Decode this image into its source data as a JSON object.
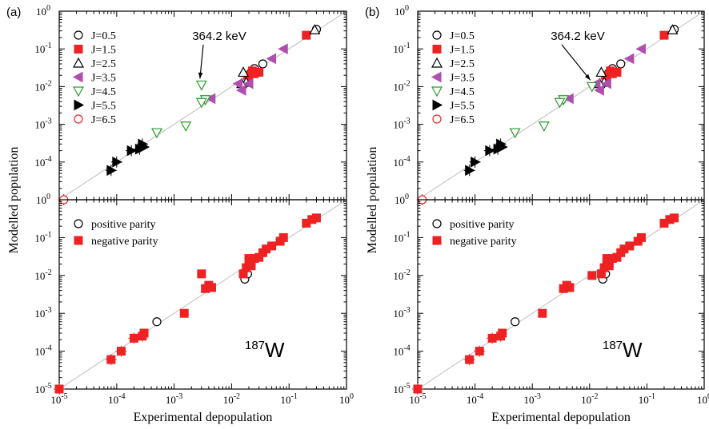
{
  "chart_data": [
    {
      "panel_label": "(a)",
      "type": "scatter",
      "xlabel": "Experimental depopulation",
      "ylabel": "Modelled population",
      "xscale": "log",
      "yscale": "log",
      "xlim": [
        1e-05,
        1
      ],
      "ylim": [
        1e-05,
        1
      ],
      "x_tick_labels": [
        "10^-5",
        "10^-4",
        "10^-3",
        "10^-2",
        "10^-1",
        "10^0"
      ],
      "y_tick_labels": [
        "10^-5",
        "10^-4",
        "10^-3",
        "10^-2",
        "10^-1",
        "10^0"
      ],
      "annotation": {
        "text": "364.2 keV",
        "points_to": [
          0.003,
          0.011
        ]
      },
      "nucleus": {
        "mass": "187",
        "symbol": "W"
      },
      "subplots": [
        {
          "position": "top",
          "legend_position": "top-left",
          "series": [
            {
              "name": "J=0.5",
              "marker": "open-circle",
              "color": "#000000",
              "points": [
                [
                  0.035,
                  0.04
                ],
                [
                  0.3,
                  0.33
                ],
                [
                  0.025,
                  0.03
                ],
                [
                  0.022,
                  0.024
                ]
              ]
            },
            {
              "name": "J=1.5",
              "marker": "filled-square",
              "color": "#ee2222",
              "points": [
                [
                  0.2,
                  0.23
                ],
                [
                  0.03,
                  0.024
                ],
                [
                  0.025,
                  0.022
                ],
                [
                  0.02,
                  0.018
                ],
                [
                  0.023,
                  0.026
                ],
                [
                  0.019,
                  0.02
                ]
              ]
            },
            {
              "name": "J=2.5",
              "marker": "open-triangle-up",
              "color": "#000000",
              "points": [
                [
                  0.28,
                  0.32
                ],
                [
                  0.016,
                  0.024
                ],
                [
                  0.018,
                  0.013
                ],
                [
                  0.015,
                  0.012
                ]
              ]
            },
            {
              "name": "J=3.5",
              "marker": "filled-triangle-left",
              "color": "#b04fb0",
              "points": [
                [
                  0.08,
                  0.1
                ],
                [
                  0.05,
                  0.055
                ],
                [
                  0.013,
                  0.012
                ],
                [
                  0.015,
                  0.008
                ],
                [
                  0.02,
                  0.012
                ],
                [
                  0.0044,
                  0.0048
                ]
              ]
            },
            {
              "name": "J=4.5",
              "marker": "open-triangle-down",
              "color": "#2a9a2a",
              "points": [
                [
                  0.003,
                  0.011
                ],
                [
                  0.0035,
                  0.0045
                ],
                [
                  0.003,
                  0.0038
                ],
                [
                  0.0016,
                  0.0009
                ],
                [
                  0.0005,
                  0.0006
                ]
              ]
            },
            {
              "name": "J=5.5",
              "marker": "filled-triangle-right",
              "color": "#000000",
              "points": [
                [
                  0.00028,
                  0.0003
                ],
                [
                  0.0003,
                  0.00025
                ],
                [
                  0.00025,
                  0.00022
                ],
                [
                  0.00018,
                  0.0002
                ],
                [
                  0.0001,
                  0.0001
                ],
                [
                  8e-05,
                  6e-05
                ]
              ]
            },
            {
              "name": "J=6.5",
              "marker": "open-circle",
              "color": "#ee2222",
              "points": [
                [
                  1.2e-05,
                  1e-05
                ]
              ]
            }
          ]
        },
        {
          "position": "bottom",
          "legend_position": "top-left",
          "series": [
            {
              "name": "positive parity",
              "marker": "open-circle",
              "color": "#000000",
              "points": [
                [
                  0.017,
                  0.008
                ],
                [
                  0.019,
                  0.011
                ],
                [
                  0.0005,
                  0.0006
                ]
              ]
            },
            {
              "name": "negative parity",
              "marker": "filled-square",
              "color": "#ee2222",
              "points": [
                [
                  0.3,
                  0.33
                ],
                [
                  0.25,
                  0.3
                ],
                [
                  0.2,
                  0.24
                ],
                [
                  0.08,
                  0.1
                ],
                [
                  0.07,
                  0.08
                ],
                [
                  0.05,
                  0.06
                ],
                [
                  0.04,
                  0.05
                ],
                [
                  0.035,
                  0.04
                ],
                [
                  0.03,
                  0.03
                ],
                [
                  0.025,
                  0.028
                ],
                [
                  0.02,
                  0.022
                ],
                [
                  0.018,
                  0.016
                ],
                [
                  0.022,
                  0.018
                ],
                [
                  0.02,
                  0.028
                ],
                [
                  0.016,
                  0.011
                ],
                [
                  0.003,
                  0.011
                ],
                [
                  0.004,
                  0.0055
                ],
                [
                  0.0035,
                  0.0045
                ],
                [
                  0.0045,
                  0.0048
                ],
                [
                  0.0015,
                  0.001
                ],
                [
                  0.0003,
                  0.0003
                ],
                [
                  0.00028,
                  0.00025
                ],
                [
                  0.0002,
                  0.00022
                ],
                [
                  0.00012,
                  0.0001
                ],
                [
                  8e-05,
                  6e-05
                ],
                [
                  1e-05,
                  1e-05
                ]
              ]
            }
          ]
        }
      ]
    },
    {
      "panel_label": "(b)",
      "type": "scatter",
      "xlabel": "Experimental depopulation",
      "ylabel": "Modelled population",
      "xscale": "log",
      "yscale": "log",
      "xlim": [
        1e-05,
        1
      ],
      "ylim": [
        1e-05,
        1
      ],
      "x_tick_labels": [
        "10^-5",
        "10^-4",
        "10^-3",
        "10^-2",
        "10^-1",
        "10^0"
      ],
      "y_tick_labels": [
        "10^-5",
        "10^-4",
        "10^-3",
        "10^-2",
        "10^-1",
        "10^0"
      ],
      "annotation": {
        "text": "364.2 keV",
        "points_to": [
          0.011,
          0.01
        ]
      },
      "nucleus": {
        "mass": "187",
        "symbol": "W"
      },
      "subplots": [
        {
          "position": "top",
          "legend_position": "top-left",
          "series": [
            {
              "name": "J=0.5",
              "marker": "open-circle",
              "color": "#000000",
              "points": [
                [
                  0.035,
                  0.04
                ],
                [
                  0.3,
                  0.33
                ],
                [
                  0.025,
                  0.03
                ],
                [
                  0.022,
                  0.024
                ]
              ]
            },
            {
              "name": "J=1.5",
              "marker": "filled-square",
              "color": "#ee2222",
              "points": [
                [
                  0.2,
                  0.23
                ],
                [
                  0.03,
                  0.024
                ],
                [
                  0.025,
                  0.022
                ],
                [
                  0.02,
                  0.018
                ],
                [
                  0.023,
                  0.026
                ],
                [
                  0.019,
                  0.02
                ]
              ]
            },
            {
              "name": "J=2.5",
              "marker": "open-triangle-up",
              "color": "#000000",
              "points": [
                [
                  0.28,
                  0.32
                ],
                [
                  0.016,
                  0.024
                ],
                [
                  0.018,
                  0.013
                ],
                [
                  0.015,
                  0.012
                ]
              ]
            },
            {
              "name": "J=3.5",
              "marker": "filled-triangle-left",
              "color": "#b04fb0",
              "points": [
                [
                  0.08,
                  0.1
                ],
                [
                  0.05,
                  0.055
                ],
                [
                  0.013,
                  0.012
                ],
                [
                  0.015,
                  0.008
                ],
                [
                  0.02,
                  0.012
                ],
                [
                  0.0044,
                  0.0048
                ]
              ]
            },
            {
              "name": "J=4.5",
              "marker": "open-triangle-down",
              "color": "#2a9a2a",
              "points": [
                [
                  0.011,
                  0.01
                ],
                [
                  0.0035,
                  0.0045
                ],
                [
                  0.003,
                  0.0038
                ],
                [
                  0.0016,
                  0.0009
                ],
                [
                  0.0005,
                  0.0006
                ]
              ]
            },
            {
              "name": "J=5.5",
              "marker": "filled-triangle-right",
              "color": "#000000",
              "points": [
                [
                  0.00028,
                  0.0003
                ],
                [
                  0.0003,
                  0.00025
                ],
                [
                  0.00025,
                  0.00022
                ],
                [
                  0.00018,
                  0.0002
                ],
                [
                  0.0001,
                  0.0001
                ],
                [
                  8e-05,
                  6e-05
                ]
              ]
            },
            {
              "name": "J=6.5",
              "marker": "open-circle",
              "color": "#ee2222",
              "points": [
                [
                  1.2e-05,
                  1e-05
                ]
              ]
            }
          ]
        },
        {
          "position": "bottom",
          "legend_position": "top-left",
          "series": [
            {
              "name": "positive parity",
              "marker": "open-circle",
              "color": "#000000",
              "points": [
                [
                  0.017,
                  0.008
                ],
                [
                  0.019,
                  0.011
                ],
                [
                  0.0005,
                  0.0006
                ]
              ]
            },
            {
              "name": "negative parity",
              "marker": "filled-square",
              "color": "#ee2222",
              "points": [
                [
                  0.3,
                  0.33
                ],
                [
                  0.25,
                  0.3
                ],
                [
                  0.2,
                  0.24
                ],
                [
                  0.08,
                  0.1
                ],
                [
                  0.07,
                  0.08
                ],
                [
                  0.05,
                  0.06
                ],
                [
                  0.04,
                  0.05
                ],
                [
                  0.035,
                  0.04
                ],
                [
                  0.03,
                  0.03
                ],
                [
                  0.025,
                  0.028
                ],
                [
                  0.02,
                  0.022
                ],
                [
                  0.018,
                  0.016
                ],
                [
                  0.022,
                  0.018
                ],
                [
                  0.02,
                  0.028
                ],
                [
                  0.016,
                  0.011
                ],
                [
                  0.011,
                  0.01
                ],
                [
                  0.004,
                  0.0055
                ],
                [
                  0.0035,
                  0.0045
                ],
                [
                  0.0045,
                  0.0048
                ],
                [
                  0.0015,
                  0.001
                ],
                [
                  0.0003,
                  0.0003
                ],
                [
                  0.00028,
                  0.00025
                ],
                [
                  0.0002,
                  0.00022
                ],
                [
                  0.00012,
                  0.0001
                ],
                [
                  8e-05,
                  6e-05
                ],
                [
                  1e-05,
                  1e-05
                ]
              ]
            }
          ]
        }
      ]
    }
  ]
}
